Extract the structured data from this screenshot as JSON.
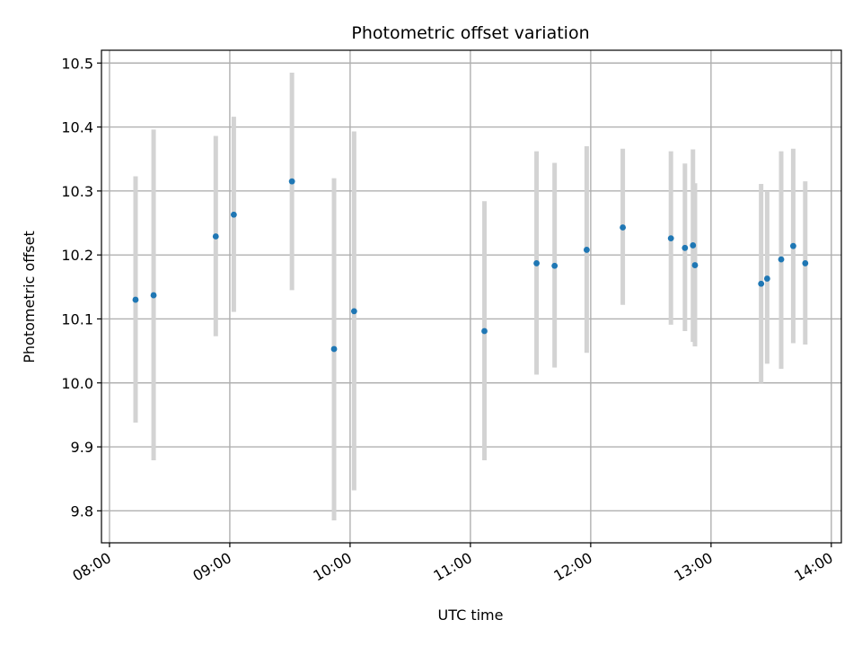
{
  "chart_data": {
    "type": "scatter",
    "title": "Photometric offset variation",
    "xlabel": "UTC time",
    "ylabel": "Photometric offset",
    "xlim": [
      "07:56",
      "14:05"
    ],
    "ylim": [
      9.75,
      10.52
    ],
    "grid": true,
    "x_ticks": [
      "08:00",
      "09:00",
      "10:00",
      "11:00",
      "12:00",
      "13:00",
      "14:00"
    ],
    "y_ticks": [
      "9.8",
      "9.9",
      "10.0",
      "10.1",
      "10.2",
      "10.3",
      "10.4",
      "10.5"
    ],
    "series": [
      {
        "points": [
          {
            "time": "08:13",
            "y": 10.13,
            "ylow": 9.938,
            "yhigh": 10.323
          },
          {
            "time": "08:22",
            "y": 10.137,
            "ylow": 9.879,
            "yhigh": 10.396
          },
          {
            "time": "08:53",
            "y": 10.229,
            "ylow": 10.073,
            "yhigh": 10.386
          },
          {
            "time": "09:02",
            "y": 10.263,
            "ylow": 10.111,
            "yhigh": 10.416
          },
          {
            "time": "09:31",
            "y": 10.315,
            "ylow": 10.145,
            "yhigh": 10.485
          },
          {
            "time": "09:52",
            "y": 10.053,
            "ylow": 9.785,
            "yhigh": 10.32
          },
          {
            "time": "10:02",
            "y": 10.112,
            "ylow": 9.832,
            "yhigh": 10.393
          },
          {
            "time": "11:07",
            "y": 10.081,
            "ylow": 9.879,
            "yhigh": 10.284
          },
          {
            "time": "11:33",
            "y": 10.187,
            "ylow": 10.013,
            "yhigh": 10.362
          },
          {
            "time": "11:42",
            "y": 10.183,
            "ylow": 10.024,
            "yhigh": 10.344
          },
          {
            "time": "11:58",
            "y": 10.208,
            "ylow": 10.047,
            "yhigh": 10.37
          },
          {
            "time": "12:16",
            "y": 10.243,
            "ylow": 10.122,
            "yhigh": 10.366
          },
          {
            "time": "12:40",
            "y": 10.226,
            "ylow": 10.091,
            "yhigh": 10.362
          },
          {
            "time": "12:47",
            "y": 10.211,
            "ylow": 10.081,
            "yhigh": 10.343
          },
          {
            "time": "12:51",
            "y": 10.215,
            "ylow": 10.064,
            "yhigh": 10.365
          },
          {
            "time": "12:52",
            "y": 10.184,
            "ylow": 10.057,
            "yhigh": 10.312
          },
          {
            "time": "13:25",
            "y": 10.155,
            "ylow": 10.0,
            "yhigh": 10.311
          },
          {
            "time": "13:28",
            "y": 10.163,
            "ylow": 10.03,
            "yhigh": 10.3
          },
          {
            "time": "13:35",
            "y": 10.193,
            "ylow": 10.022,
            "yhigh": 10.362
          },
          {
            "time": "13:41",
            "y": 10.214,
            "ylow": 10.062,
            "yhigh": 10.366
          },
          {
            "time": "13:47",
            "y": 10.187,
            "ylow": 10.06,
            "yhigh": 10.315
          }
        ]
      }
    ],
    "colors": {
      "point": "#1f77b4",
      "errorbar": "#d3d3d3",
      "grid": "#b0b0b0"
    }
  }
}
